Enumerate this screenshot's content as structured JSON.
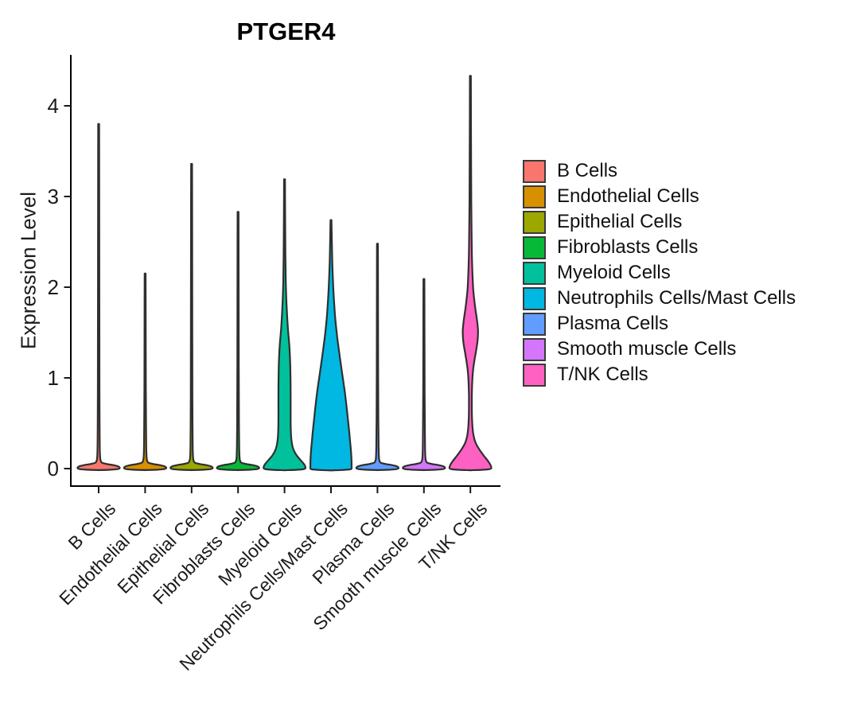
{
  "chart_data": {
    "type": "violin",
    "title": "PTGER4",
    "xlabel": "",
    "ylabel": "Expression Level",
    "ylim": [
      -0.05,
      4.45
    ],
    "yticks": [
      0,
      1,
      2,
      3,
      4
    ],
    "grid": false,
    "legend_position": "right",
    "outline_color": "#2f2f2f",
    "axis_color": "#000000",
    "categories": [
      "B Cells",
      "Endothelial Cells",
      "Epithelial Cells",
      "Fibroblasts Cells",
      "Myeloid Cells",
      "Neutrophils Cells/Mast Cells",
      "Plasma Cells",
      "Smooth muscle Cells",
      "T/NK Cells"
    ],
    "series": [
      {
        "name": "B Cells",
        "color": "#F8766D",
        "max_expression": 3.8,
        "profile": [
          [
            3.8,
            0.022
          ],
          [
            3.2,
            0.026
          ],
          [
            2.4,
            0.03
          ],
          [
            1.6,
            0.034
          ],
          [
            0.9,
            0.038
          ],
          [
            0.45,
            0.045
          ],
          [
            0.25,
            0.052
          ],
          [
            0.15,
            0.062
          ],
          [
            0.095,
            0.085
          ],
          [
            0.065,
            0.15
          ],
          [
            0.05,
            0.38
          ],
          [
            0.04,
            0.65
          ],
          [
            0.028,
            0.87
          ],
          [
            0.016,
            0.965
          ],
          [
            0.006,
            0.98
          ],
          [
            0,
            0.955
          ],
          [
            -0.007,
            0.85
          ],
          [
            -0.013,
            0.52
          ],
          [
            -0.017,
            0
          ]
        ]
      },
      {
        "name": "Endothelial Cells",
        "color": "#D79000",
        "max_expression": 2.15,
        "profile": [
          [
            2.15,
            0.022
          ],
          [
            1.8,
            0.026
          ],
          [
            1.3,
            0.03
          ],
          [
            0.9,
            0.034
          ],
          [
            0.45,
            0.045
          ],
          [
            0.25,
            0.052
          ],
          [
            0.15,
            0.062
          ],
          [
            0.095,
            0.085
          ],
          [
            0.065,
            0.15
          ],
          [
            0.05,
            0.38
          ],
          [
            0.04,
            0.65
          ],
          [
            0.028,
            0.87
          ],
          [
            0.016,
            0.965
          ],
          [
            0.006,
            0.98
          ],
          [
            0,
            0.955
          ],
          [
            -0.007,
            0.85
          ],
          [
            -0.013,
            0.52
          ],
          [
            -0.017,
            0
          ]
        ]
      },
      {
        "name": "Epithelial Cells",
        "color": "#9CA700",
        "max_expression": 3.36,
        "profile": [
          [
            3.36,
            0.022
          ],
          [
            2.8,
            0.026
          ],
          [
            2.1,
            0.03
          ],
          [
            1.4,
            0.034
          ],
          [
            0.8,
            0.038
          ],
          [
            0.45,
            0.045
          ],
          [
            0.25,
            0.052
          ],
          [
            0.15,
            0.062
          ],
          [
            0.095,
            0.085
          ],
          [
            0.065,
            0.15
          ],
          [
            0.05,
            0.38
          ],
          [
            0.04,
            0.65
          ],
          [
            0.028,
            0.87
          ],
          [
            0.016,
            0.965
          ],
          [
            0.006,
            0.98
          ],
          [
            0,
            0.955
          ],
          [
            -0.007,
            0.85
          ],
          [
            -0.013,
            0.52
          ],
          [
            -0.017,
            0
          ]
        ]
      },
      {
        "name": "Fibroblasts Cells",
        "color": "#06BA38",
        "max_expression": 2.83,
        "profile": [
          [
            2.83,
            0.022
          ],
          [
            2.3,
            0.026
          ],
          [
            1.7,
            0.03
          ],
          [
            1.1,
            0.034
          ],
          [
            0.6,
            0.04
          ],
          [
            0.35,
            0.048
          ],
          [
            0.22,
            0.055
          ],
          [
            0.14,
            0.065
          ],
          [
            0.095,
            0.085
          ],
          [
            0.065,
            0.15
          ],
          [
            0.05,
            0.38
          ],
          [
            0.04,
            0.65
          ],
          [
            0.028,
            0.87
          ],
          [
            0.016,
            0.965
          ],
          [
            0.006,
            0.98
          ],
          [
            0,
            0.955
          ],
          [
            -0.007,
            0.85
          ],
          [
            -0.013,
            0.52
          ],
          [
            -0.017,
            0
          ]
        ]
      },
      {
        "name": "Myeloid Cells",
        "color": "#00C19C",
        "max_expression": 3.19,
        "profile": [
          [
            3.19,
            0.022
          ],
          [
            2.75,
            0.03
          ],
          [
            2.35,
            0.042
          ],
          [
            2.05,
            0.06
          ],
          [
            1.8,
            0.095
          ],
          [
            1.55,
            0.155
          ],
          [
            1.35,
            0.225
          ],
          [
            1.15,
            0.265
          ],
          [
            0.95,
            0.28
          ],
          [
            0.75,
            0.285
          ],
          [
            0.55,
            0.285
          ],
          [
            0.4,
            0.295
          ],
          [
            0.3,
            0.33
          ],
          [
            0.22,
            0.4
          ],
          [
            0.15,
            0.55
          ],
          [
            0.09,
            0.76
          ],
          [
            0.045,
            0.92
          ],
          [
            0.015,
            0.975
          ],
          [
            0,
            0.96
          ],
          [
            -0.008,
            0.86
          ],
          [
            -0.014,
            0.52
          ],
          [
            -0.018,
            0
          ]
        ]
      },
      {
        "name": "Neutrophils Cells/Mast Cells",
        "color": "#00B8E1",
        "max_expression": 2.74,
        "profile": [
          [
            2.74,
            0.022
          ],
          [
            2.5,
            0.04
          ],
          [
            2.28,
            0.06
          ],
          [
            2.05,
            0.095
          ],
          [
            1.85,
            0.14
          ],
          [
            1.65,
            0.2
          ],
          [
            1.45,
            0.29
          ],
          [
            1.25,
            0.4
          ],
          [
            1.05,
            0.52
          ],
          [
            0.85,
            0.64
          ],
          [
            0.65,
            0.74
          ],
          [
            0.45,
            0.83
          ],
          [
            0.3,
            0.89
          ],
          [
            0.18,
            0.935
          ],
          [
            0.09,
            0.955
          ],
          [
            0.03,
            0.96
          ],
          [
            0,
            0.955
          ],
          [
            -0.009,
            0.87
          ],
          [
            -0.016,
            0.5
          ],
          [
            -0.02,
            0
          ]
        ]
      },
      {
        "name": "Plasma Cells",
        "color": "#619CFF",
        "max_expression": 2.48,
        "profile": [
          [
            2.48,
            0.022
          ],
          [
            2.0,
            0.026
          ],
          [
            1.5,
            0.03
          ],
          [
            1.0,
            0.034
          ],
          [
            0.55,
            0.04
          ],
          [
            0.3,
            0.05
          ],
          [
            0.18,
            0.06
          ],
          [
            0.12,
            0.07
          ],
          [
            0.09,
            0.09
          ],
          [
            0.065,
            0.15
          ],
          [
            0.05,
            0.38
          ],
          [
            0.04,
            0.65
          ],
          [
            0.028,
            0.87
          ],
          [
            0.016,
            0.965
          ],
          [
            0.006,
            0.98
          ],
          [
            0,
            0.955
          ],
          [
            -0.007,
            0.85
          ],
          [
            -0.013,
            0.52
          ],
          [
            -0.017,
            0
          ]
        ]
      },
      {
        "name": "Smooth muscle Cells",
        "color": "#D476FB",
        "max_expression": 2.09,
        "profile": [
          [
            2.09,
            0.022
          ],
          [
            1.7,
            0.026
          ],
          [
            1.25,
            0.03
          ],
          [
            0.85,
            0.034
          ],
          [
            0.45,
            0.045
          ],
          [
            0.25,
            0.052
          ],
          [
            0.15,
            0.062
          ],
          [
            0.095,
            0.085
          ],
          [
            0.065,
            0.15
          ],
          [
            0.05,
            0.38
          ],
          [
            0.04,
            0.65
          ],
          [
            0.028,
            0.87
          ],
          [
            0.016,
            0.965
          ],
          [
            0.006,
            0.98
          ],
          [
            0,
            0.955
          ],
          [
            -0.007,
            0.85
          ],
          [
            -0.013,
            0.52
          ],
          [
            -0.017,
            0
          ]
        ]
      },
      {
        "name": "T/NK Cells",
        "color": "#FF61C3",
        "max_expression": 4.33,
        "profile": [
          [
            4.33,
            0.022
          ],
          [
            3.9,
            0.027
          ],
          [
            3.4,
            0.033
          ],
          [
            2.95,
            0.042
          ],
          [
            2.6,
            0.055
          ],
          [
            2.35,
            0.07
          ],
          [
            2.15,
            0.095
          ],
          [
            1.97,
            0.135
          ],
          [
            1.8,
            0.21
          ],
          [
            1.65,
            0.3
          ],
          [
            1.52,
            0.355
          ],
          [
            1.4,
            0.33
          ],
          [
            1.28,
            0.25
          ],
          [
            1.16,
            0.165
          ],
          [
            1.05,
            0.11
          ],
          [
            0.93,
            0.082
          ],
          [
            0.8,
            0.068
          ],
          [
            0.68,
            0.066
          ],
          [
            0.56,
            0.075
          ],
          [
            0.45,
            0.1
          ],
          [
            0.36,
            0.15
          ],
          [
            0.28,
            0.25
          ],
          [
            0.21,
            0.42
          ],
          [
            0.14,
            0.63
          ],
          [
            0.08,
            0.83
          ],
          [
            0.035,
            0.945
          ],
          [
            0.01,
            0.975
          ],
          [
            0,
            0.96
          ],
          [
            -0.008,
            0.86
          ],
          [
            -0.014,
            0.5
          ],
          [
            -0.018,
            0
          ]
        ]
      }
    ]
  }
}
